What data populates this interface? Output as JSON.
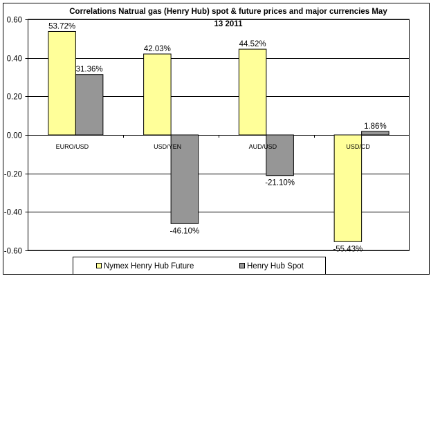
{
  "chart_data": {
    "type": "bar",
    "title": "Correlations Natrual gas (Henry Hub) spot & future prices and major currencies May 13 2011",
    "title_lines": [
      "Correlations Natrual gas (Henry Hub) spot & future prices and major currencies May",
      "13 2011"
    ],
    "categories": [
      "EURO/USD",
      "USD/YEN",
      "AUD/USD",
      "USD/CD"
    ],
    "series": [
      {
        "name": "Nymex Henry Hub Future",
        "color": "#FFFF99",
        "values": [
          0.5372,
          0.4203,
          0.4452,
          -0.5543
        ],
        "labels": [
          "53.72%",
          "42.03%",
          "44.52%",
          "-55.43%"
        ]
      },
      {
        "name": "Henry Hub Spot",
        "color": "#969696",
        "values": [
          0.3136,
          -0.461,
          -0.211,
          0.0186
        ],
        "labels": [
          "31.36%",
          "-46.10%",
          "-21.10%",
          "1.86%"
        ]
      }
    ],
    "ylim": [
      -0.6,
      0.6
    ],
    "yticks": [
      "0.60",
      "0.40",
      "0.20",
      "0.00",
      "-0.20",
      "-0.40",
      "-0.60"
    ],
    "ytick_values": [
      0.6,
      0.4,
      0.2,
      0,
      -0.2,
      -0.4,
      -0.6
    ],
    "grid": true,
    "legend_position": "bottom",
    "xlabel": "",
    "ylabel": ""
  }
}
